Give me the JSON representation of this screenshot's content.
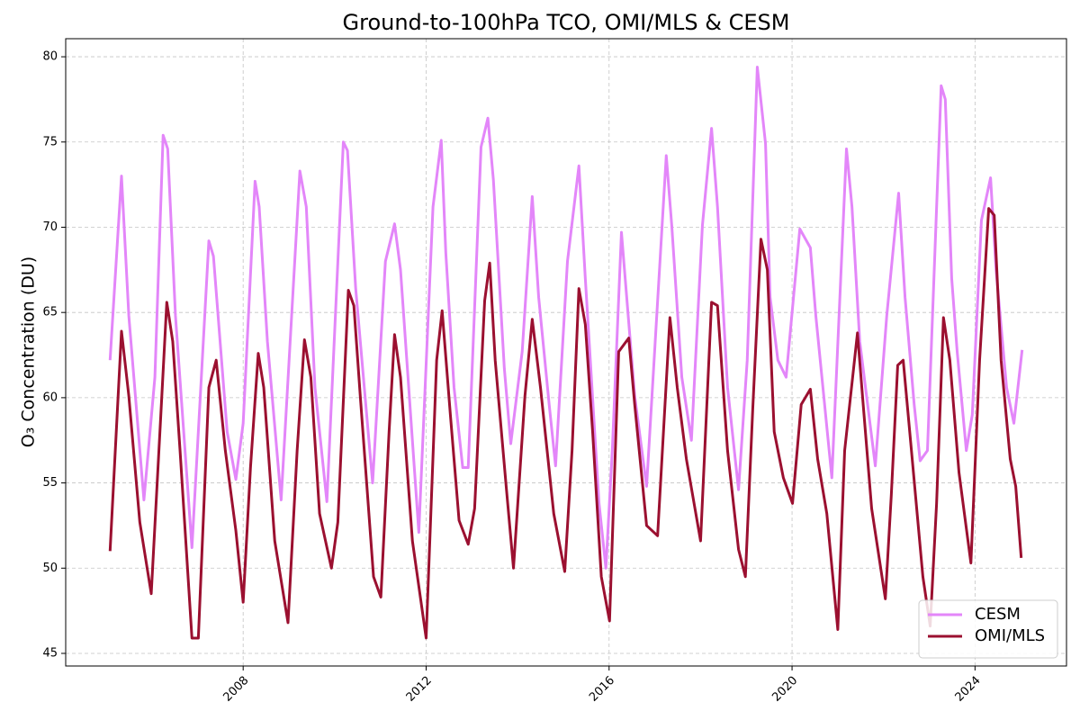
{
  "chart_data": {
    "type": "line",
    "title": "Ground-to-100hPa TCO, OMI/MLS & CESM",
    "y_label": "O₃ Concentration (DU)",
    "xlim": [
      2004.12,
      2026.0
    ],
    "xticks": [
      2008,
      2012,
      2016,
      2020,
      2024
    ],
    "ylim": [
      44.26,
      81.06
    ],
    "yticks": [
      45,
      50,
      55,
      60,
      65,
      70,
      75,
      80
    ],
    "grid": true,
    "legend": "lower right",
    "series": [
      {
        "name": "CESM",
        "color": "#e386f9",
        "x": [
          2005.09,
          2005.34,
          2005.5,
          2005.83,
          2006.07,
          2006.25,
          2006.35,
          2006.52,
          2006.88,
          2007.25,
          2007.35,
          2007.65,
          2007.84,
          2008.0,
          2008.26,
          2008.35,
          2008.53,
          2008.83,
          2009.24,
          2009.38,
          2009.57,
          2009.83,
          2010.19,
          2010.28,
          2010.46,
          2010.83,
          2011.11,
          2011.31,
          2011.44,
          2011.84,
          2012.15,
          2012.33,
          2012.43,
          2012.61,
          2012.8,
          2012.92,
          2013.2,
          2013.35,
          2013.47,
          2013.71,
          2013.85,
          2014.1,
          2014.32,
          2014.46,
          2014.69,
          2014.83,
          2015.09,
          2015.34,
          2015.48,
          2015.78,
          2015.93,
          2016.07,
          2016.27,
          2016.56,
          2016.82,
          2017.25,
          2017.37,
          2017.59,
          2017.8,
          2018.04,
          2018.24,
          2018.37,
          2018.59,
          2018.83,
          2019.02,
          2019.24,
          2019.42,
          2019.52,
          2019.69,
          2019.87,
          2020.17,
          2020.4,
          2020.52,
          2020.87,
          2021.19,
          2021.31,
          2021.48,
          2021.82,
          2022.07,
          2022.33,
          2022.47,
          2022.67,
          2022.8,
          2022.96,
          2023.26,
          2023.35,
          2023.49,
          2023.61,
          2023.81,
          2023.94,
          2024.14,
          2024.34,
          2024.46,
          2024.69,
          2024.85,
          2025.03
        ],
        "values": [
          62.2,
          73.0,
          64.8,
          54.0,
          61.2,
          75.4,
          74.6,
          64.8,
          51.2,
          69.2,
          68.3,
          58.0,
          55.2,
          58.5,
          72.7,
          71.2,
          63.3,
          54.0,
          73.3,
          71.2,
          60.6,
          53.9,
          75.0,
          74.5,
          66.4,
          55.0,
          68.0,
          70.2,
          67.5,
          52.1,
          71.2,
          75.1,
          68.5,
          60.6,
          55.9,
          55.9,
          74.7,
          76.4,
          72.8,
          61.7,
          57.3,
          62.7,
          71.8,
          65.9,
          59.6,
          56.0,
          68.0,
          73.6,
          67.0,
          53.8,
          50.0,
          56.9,
          69.7,
          60.1,
          54.8,
          74.2,
          70.1,
          61.2,
          57.5,
          70.1,
          75.8,
          71.2,
          60.6,
          54.6,
          62.2,
          79.4,
          74.9,
          65.9,
          62.2,
          61.2,
          69.9,
          68.8,
          64.8,
          55.3,
          74.6,
          71.2,
          63.3,
          56.0,
          64.8,
          72.0,
          65.9,
          59.6,
          56.3,
          56.9,
          78.3,
          77.5,
          67.0,
          62.7,
          56.9,
          59.0,
          70.4,
          72.9,
          67.5,
          60.6,
          58.5,
          62.8
        ]
      },
      {
        "name": "OMI/MLS",
        "color": "#9b1030",
        "x": [
          2005.09,
          2005.34,
          2005.5,
          2005.74,
          2005.99,
          2006.19,
          2006.33,
          2006.46,
          2006.62,
          2006.88,
          2007.02,
          2007.25,
          2007.41,
          2007.61,
          2007.84,
          2008.0,
          2008.16,
          2008.33,
          2008.45,
          2008.69,
          2008.98,
          2009.18,
          2009.34,
          2009.48,
          2009.67,
          2009.93,
          2010.07,
          2010.3,
          2010.42,
          2010.56,
          2010.85,
          2011.01,
          2011.19,
          2011.31,
          2011.44,
          2011.7,
          2012.0,
          2012.23,
          2012.35,
          2012.53,
          2012.72,
          2012.92,
          2013.06,
          2013.28,
          2013.39,
          2013.51,
          2013.75,
          2013.91,
          2014.16,
          2014.32,
          2014.5,
          2014.79,
          2015.03,
          2015.19,
          2015.34,
          2015.48,
          2015.64,
          2015.83,
          2016.01,
          2016.21,
          2016.43,
          2016.56,
          2016.82,
          2017.06,
          2017.33,
          2017.49,
          2017.69,
          2018.0,
          2018.24,
          2018.37,
          2018.59,
          2018.83,
          2018.98,
          2019.14,
          2019.32,
          2019.46,
          2019.61,
          2019.81,
          2020.01,
          2020.2,
          2020.4,
          2020.56,
          2020.76,
          2021.0,
          2021.15,
          2021.43,
          2021.54,
          2021.74,
          2022.04,
          2022.17,
          2022.31,
          2022.43,
          2022.61,
          2022.86,
          2023.02,
          2023.16,
          2023.31,
          2023.45,
          2023.65,
          2023.91,
          2024.1,
          2024.3,
          2024.42,
          2024.57,
          2024.77,
          2024.89,
          2025.01
        ],
        "values": [
          51.0,
          63.9,
          60.1,
          52.7,
          48.5,
          58.5,
          65.6,
          63.3,
          56.9,
          45.9,
          45.9,
          60.6,
          62.2,
          56.9,
          52.2,
          48.0,
          55.9,
          62.6,
          60.6,
          51.6,
          46.8,
          56.9,
          63.4,
          61.2,
          53.2,
          50.0,
          52.7,
          66.3,
          65.4,
          60.1,
          49.5,
          48.3,
          58.0,
          63.7,
          61.2,
          51.6,
          45.9,
          62.2,
          65.1,
          59.0,
          52.8,
          51.4,
          53.5,
          65.7,
          67.9,
          62.2,
          54.8,
          50.0,
          60.1,
          64.6,
          60.6,
          53.2,
          49.8,
          56.9,
          66.4,
          64.3,
          58.0,
          49.5,
          46.9,
          62.7,
          63.5,
          59.6,
          52.5,
          51.9,
          64.7,
          60.6,
          56.4,
          51.6,
          65.6,
          65.4,
          56.9,
          51.1,
          49.5,
          59.3,
          69.3,
          67.5,
          58.0,
          55.3,
          53.8,
          59.6,
          60.5,
          56.4,
          53.2,
          46.4,
          56.9,
          63.8,
          60.1,
          53.5,
          48.2,
          54.3,
          61.9,
          62.2,
          56.9,
          49.5,
          46.6,
          53.8,
          64.7,
          62.2,
          55.6,
          50.3,
          62.2,
          71.1,
          70.7,
          62.2,
          56.4,
          54.8,
          50.6
        ]
      }
    ]
  }
}
